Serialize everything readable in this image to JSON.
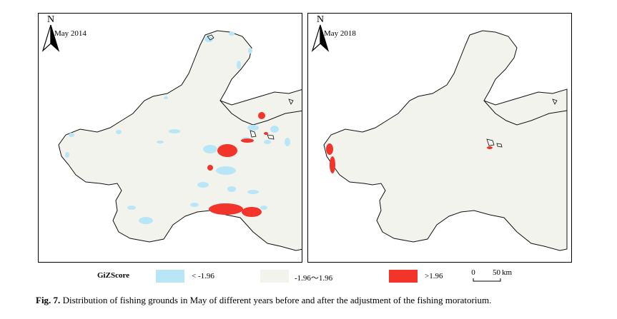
{
  "maps": [
    {
      "label": "May 2014"
    },
    {
      "label": "May 2018"
    }
  ],
  "north": "N",
  "legend": {
    "title": "GiZScore",
    "items": [
      {
        "label": "< -1.96",
        "color": "#b8e6f7"
      },
      {
        "label": "-1.96～1.96",
        "color": "#f3f3ee"
      },
      {
        "label": ">1.96",
        "color": "#f2342a"
      }
    ]
  },
  "scalebar": {
    "zero": "0",
    "value": "50",
    "unit": "km"
  },
  "caption": {
    "label": "Fig. 7.",
    "text": "Distribution of fishing grounds in May of different years before and after the adjustment of the fishing moratorium."
  },
  "colors": {
    "sea": "#f3f3ee",
    "cold": "#b8e6f7",
    "hot": "#f2342a",
    "outline": "#111111"
  }
}
